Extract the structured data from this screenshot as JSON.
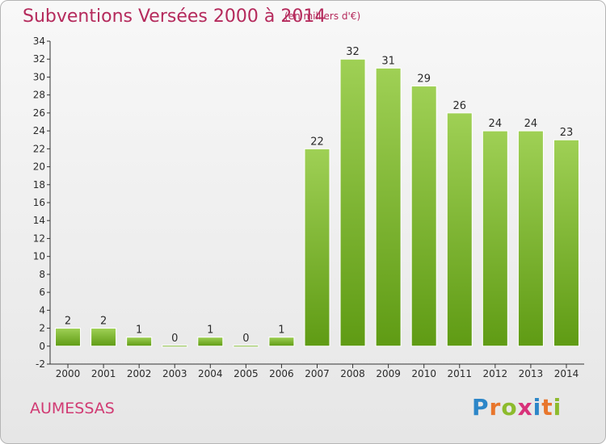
{
  "header": {
    "title": "Subventions Versées 2000 à 2014",
    "subtitle": "(en milliers d'€)"
  },
  "footer": {
    "place": "AUMESSAS",
    "logo_letters": [
      {
        "char": "P",
        "color": "#2c86c8"
      },
      {
        "char": "r",
        "color": "#e8762c"
      },
      {
        "char": "o",
        "color": "#8dbb2d"
      },
      {
        "char": "x",
        "color": "#d8327a"
      },
      {
        "char": "i",
        "color": "#2c86c8"
      },
      {
        "char": "t",
        "color": "#e8762c"
      },
      {
        "char": "i",
        "color": "#8dbb2d"
      }
    ]
  },
  "chart_data": {
    "type": "bar",
    "title": "Subventions Versées 2000 à 2014",
    "subtitle": "(en milliers d'€)",
    "xlabel": "",
    "ylabel": "",
    "categories": [
      "2000",
      "2001",
      "2002",
      "2003",
      "2004",
      "2005",
      "2006",
      "2007",
      "2008",
      "2009",
      "2010",
      "2011",
      "2012",
      "2013",
      "2014"
    ],
    "values": [
      2,
      2,
      1,
      0,
      1,
      0,
      1,
      22,
      32,
      31,
      29,
      26,
      24,
      24,
      23
    ],
    "data_labels": [
      "2",
      "2",
      "1",
      "0",
      "1",
      "0",
      "1",
      "22",
      "32",
      "31",
      "29",
      "26",
      "24",
      "24",
      "23"
    ],
    "ylim": [
      -2,
      34
    ],
    "yticks": [
      -2,
      0,
      2,
      4,
      6,
      8,
      10,
      12,
      14,
      16,
      18,
      20,
      22,
      24,
      26,
      28,
      30,
      32,
      34
    ],
    "grid": false,
    "legend": "none",
    "bar_color_top": "#9fd055",
    "bar_color_bottom": "#5f9b14"
  }
}
